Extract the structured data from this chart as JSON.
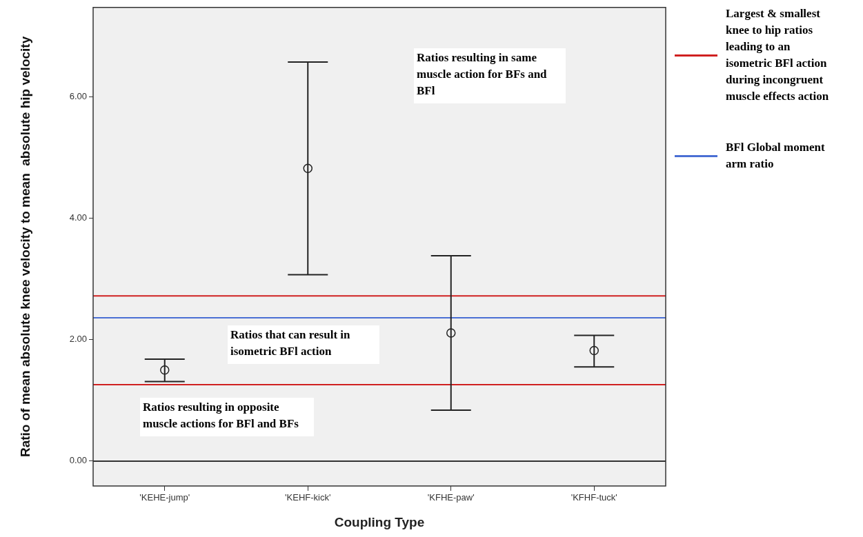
{
  "chart_data": {
    "type": "scatter",
    "xlabel": "Coupling Type",
    "ylabel": "Ratio of mean absolute knee velocity to mean  absolute hip velocity",
    "categories": [
      "'KEHE-jump'",
      "'KEHF-kick'",
      "'KFHE-paw'",
      "'KFHF-tuck'"
    ],
    "values": [
      1.5,
      4.82,
      2.11,
      1.82
    ],
    "errors": [
      [
        1.31,
        1.68
      ],
      [
        3.07,
        6.57
      ],
      [
        0.84,
        3.38
      ],
      [
        1.55,
        2.07
      ]
    ],
    "color": "#222222",
    "marker": "circle",
    "ylim": [
      -0.41,
      7.47
    ],
    "yticks": [
      {
        "value": 0,
        "label": "0.00"
      },
      {
        "value": 2,
        "label": "2.00"
      },
      {
        "value": 4,
        "label": "4.00"
      },
      {
        "value": 6,
        "label": "6.00"
      }
    ],
    "grid": false,
    "legend": "right",
    "ref_lines": [
      {
        "axis": "y",
        "value": 2.72,
        "label": "Largest & smallest knee to hip ratios leading to an isometric BFl action during incongruent muscle effects action",
        "color": "#d02020"
      },
      {
        "axis": "y",
        "value": 1.26,
        "color": "#d02020"
      },
      {
        "axis": "y",
        "value": 2.36,
        "label": "BFl Global moment arm ratio",
        "color": "#4a6fd4"
      },
      {
        "axis": "y",
        "value": 0,
        "color": "#333333"
      }
    ],
    "annotations": [
      "Ratios resulting in same muscle action for BFs and BFl",
      "Ratios that can result in isometric BFl action",
      "Ratios resulting in opposite muscle actions for BFl and BFs"
    ]
  }
}
